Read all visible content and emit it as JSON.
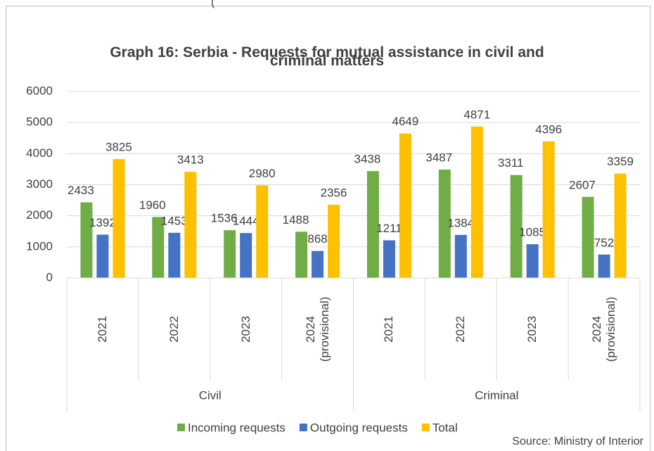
{
  "caption_fragment": "(",
  "chart_data": {
    "type": "bar",
    "title": "Graph 16: Serbia - Requests for mutual assistance in civil and criminal matters",
    "categories": [
      "2021",
      "2022",
      "2023",
      "2024 (provisional)",
      "2021",
      "2022",
      "2023",
      "2024 (provisional)"
    ],
    "groups": [
      {
        "name": "Civil",
        "size": 4
      },
      {
        "name": "Criminal",
        "size": 4
      }
    ],
    "series": [
      {
        "name": "Incoming requests",
        "color": "#70ad47",
        "values": [
          2433,
          1960,
          1536,
          1488,
          3438,
          3487,
          3311,
          2607
        ]
      },
      {
        "name": "Outgoing requests",
        "color": "#4472c4",
        "values": [
          1392,
          1453,
          1444,
          868,
          1211,
          1384,
          1085,
          752
        ]
      },
      {
        "name": "Total",
        "color": "#ffc000",
        "values": [
          3825,
          3413,
          2980,
          2356,
          4649,
          4871,
          4396,
          3359
        ]
      }
    ],
    "ylim": [
      0,
      6000
    ],
    "yticks": [
      0,
      1000,
      2000,
      3000,
      4000,
      5000,
      6000
    ],
    "grid": true,
    "legend": "bottom",
    "source": "Source: Ministry of Interior"
  }
}
